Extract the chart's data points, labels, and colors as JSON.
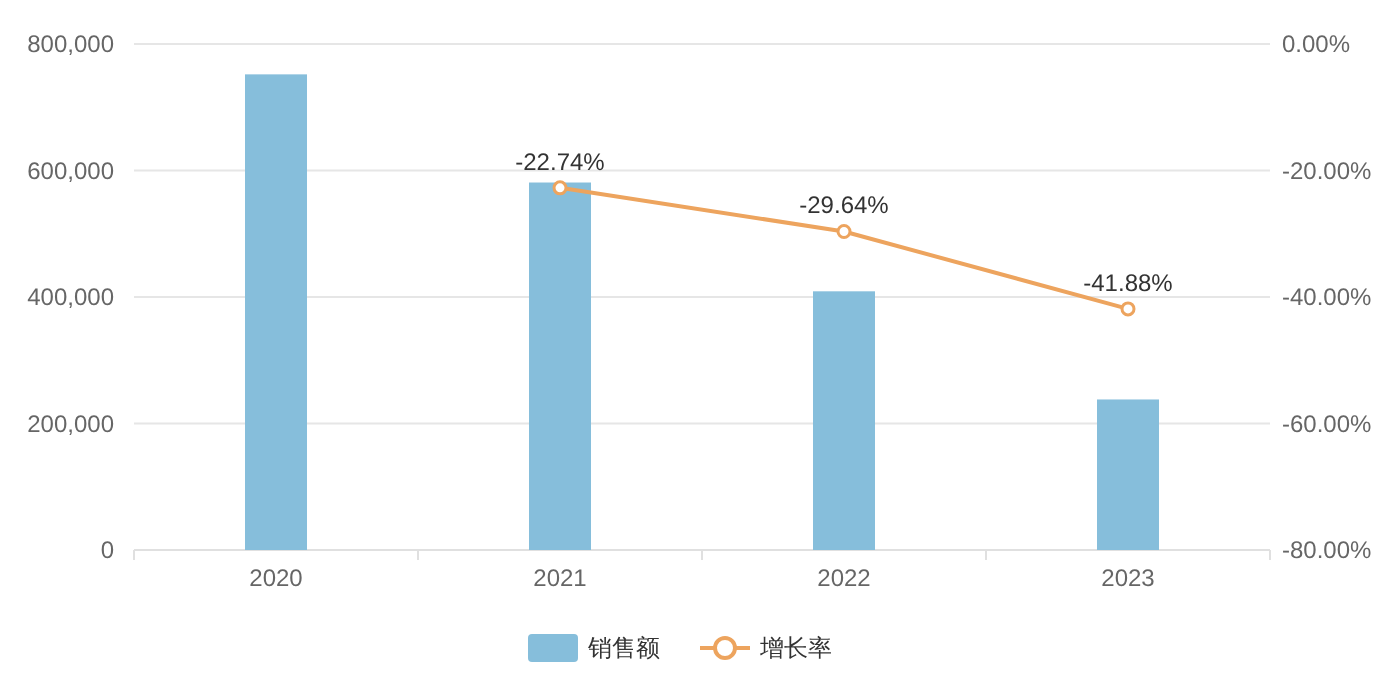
{
  "chart_data": {
    "type": "bar",
    "categories": [
      "2020",
      "2021",
      "2022",
      "2023"
    ],
    "series": [
      {
        "name": "销售额",
        "color": "#86bedb",
        "values": [
          752000,
          581000,
          409000,
          238000
        ]
      },
      {
        "name": "增长率",
        "type": "line",
        "axis": "y2",
        "color": "#eda45e",
        "marker": "circle",
        "values": [
          null,
          -22.74,
          -29.64,
          -41.88
        ],
        "value_labels": [
          null,
          "-22.74%",
          "-29.64%",
          "-41.88%"
        ]
      }
    ],
    "ylim": [
      0,
      800000
    ],
    "yticks": [
      {
        "value": 0,
        "label": "0"
      },
      {
        "value": 200000,
        "label": "200,000"
      },
      {
        "value": 400000,
        "label": "400,000"
      },
      {
        "value": 600000,
        "label": "600,000"
      },
      {
        "value": 800000,
        "label": "800,000"
      }
    ],
    "y2lim": [
      -80,
      0
    ],
    "y2ticks": [
      {
        "value": -80,
        "label": "-80.00%"
      },
      {
        "value": -60,
        "label": "-60.00%"
      },
      {
        "value": -40,
        "label": "-40.00%"
      },
      {
        "value": -20,
        "label": "-20.00%"
      },
      {
        "value": 0,
        "label": "0.00%"
      }
    ],
    "grid": "y",
    "legend": "bottom"
  }
}
